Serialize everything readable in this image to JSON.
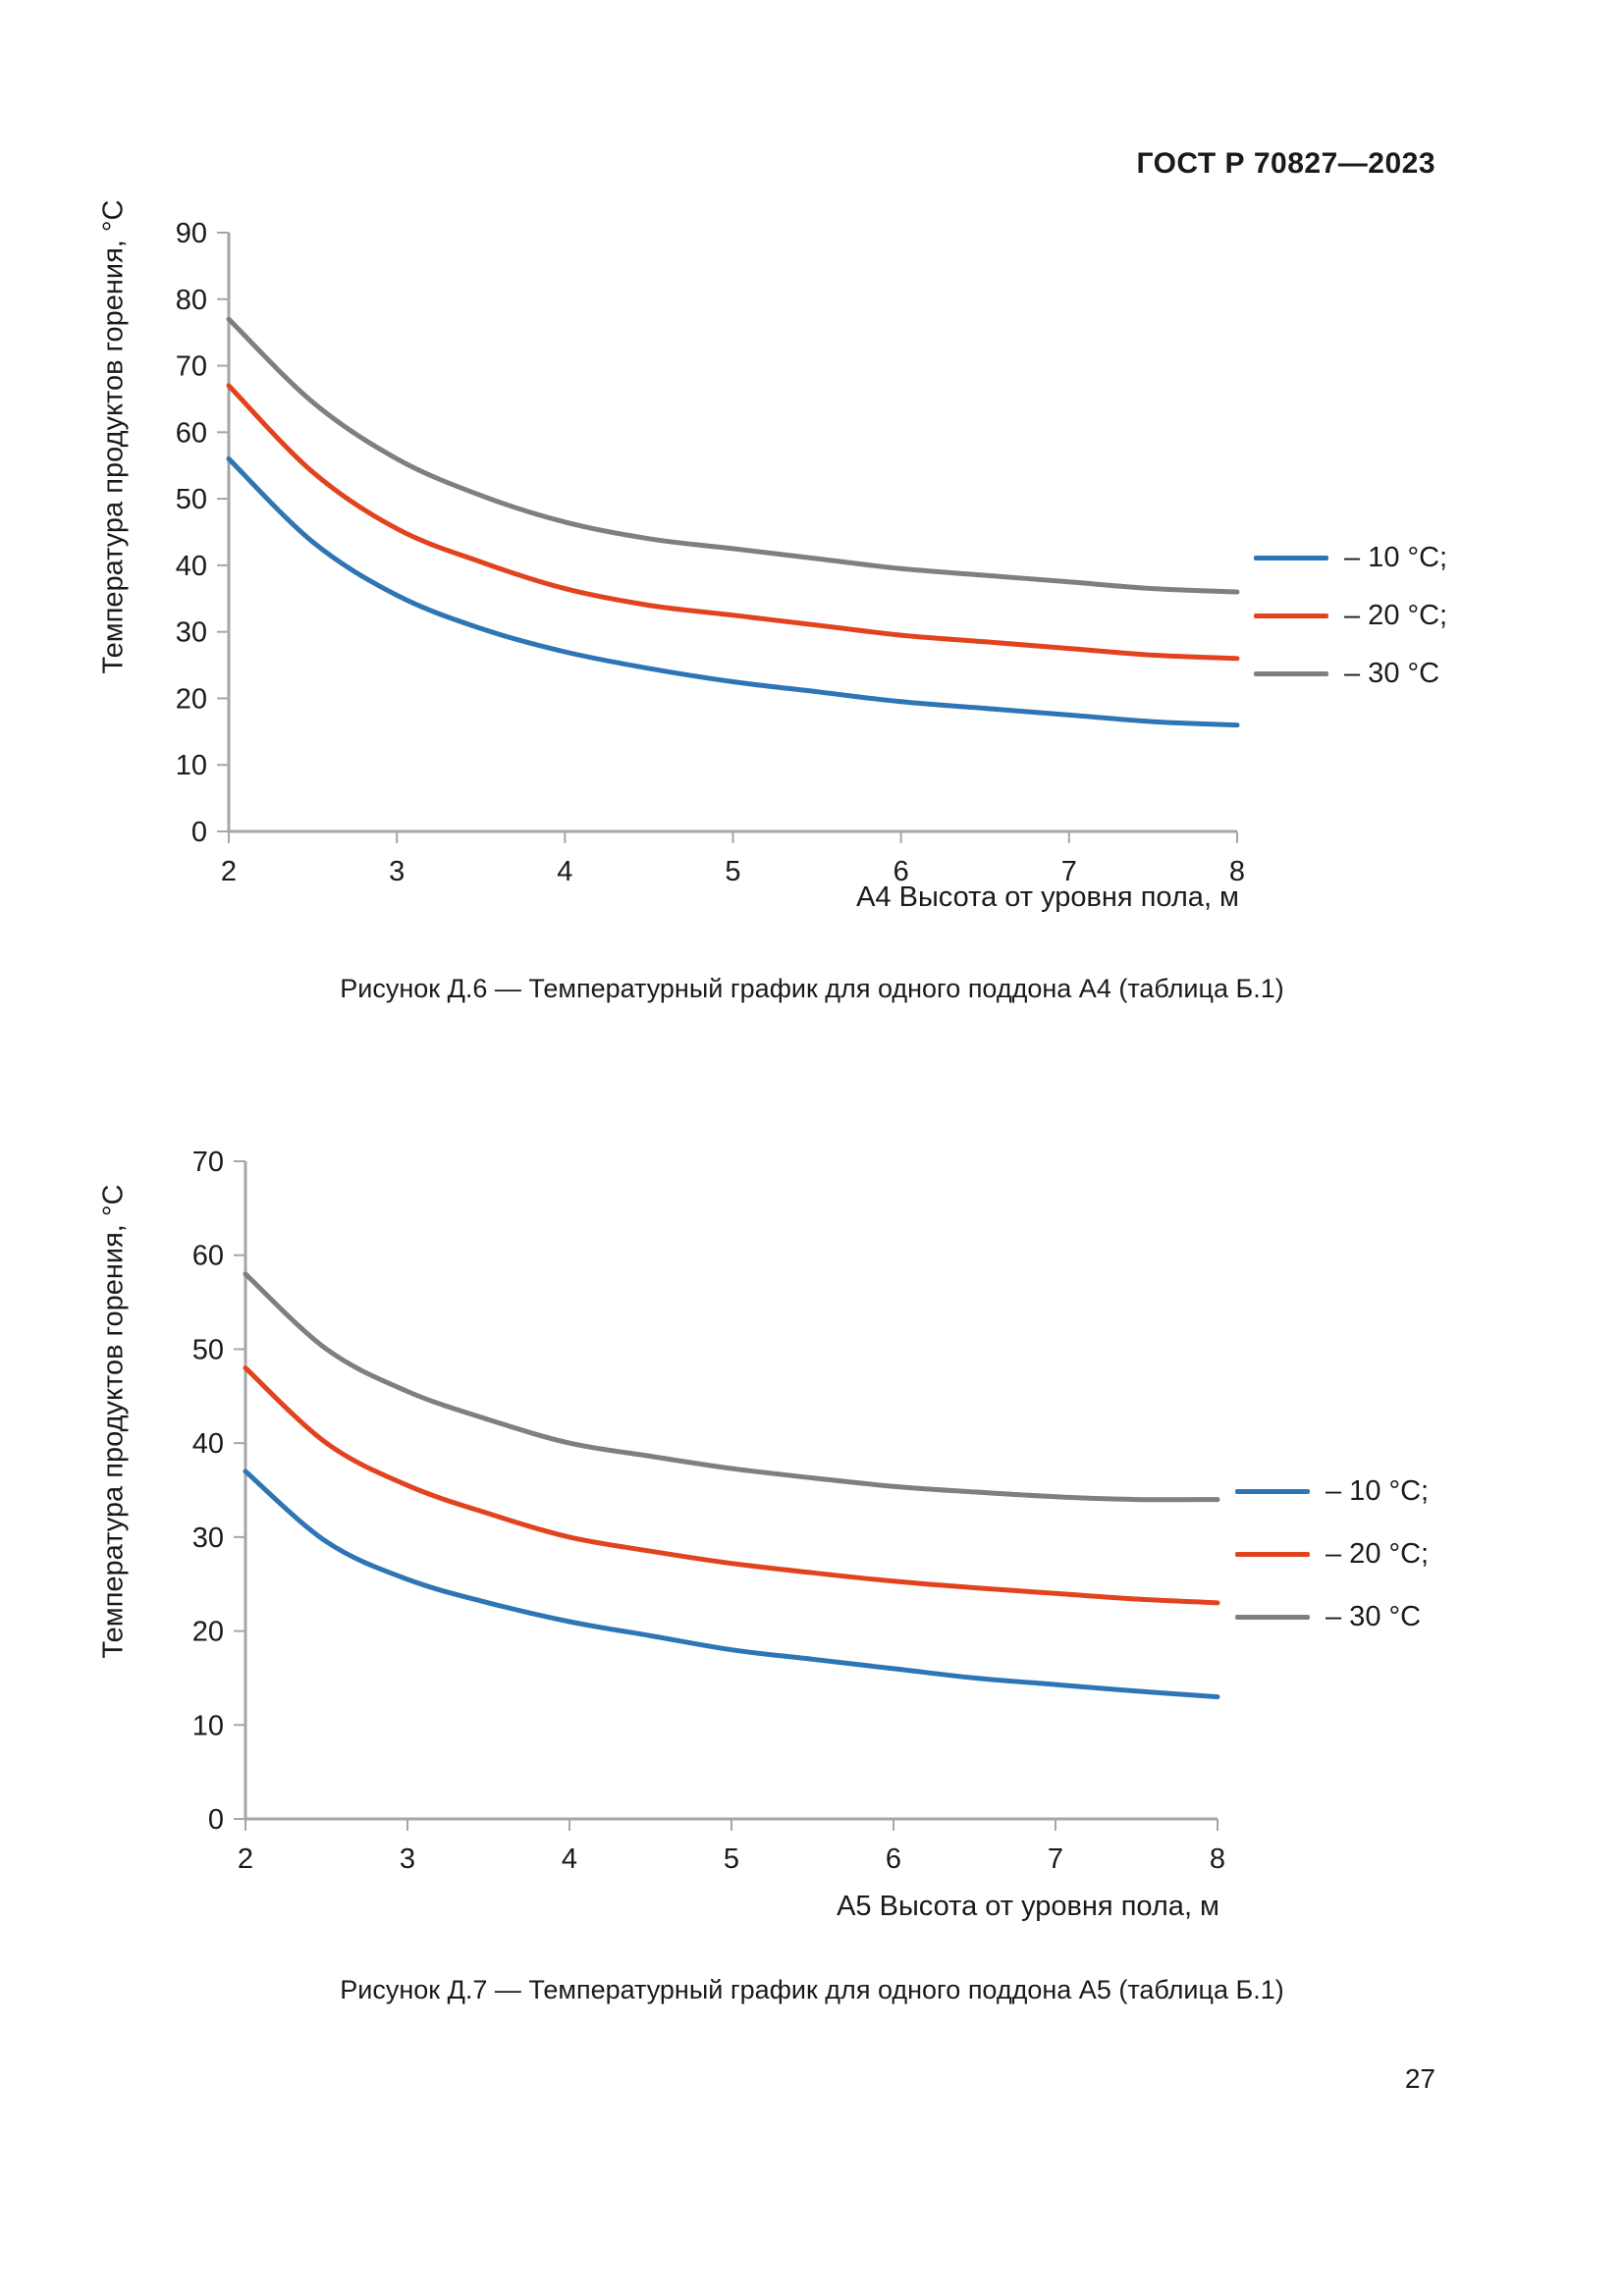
{
  "page": {
    "header": "ГОСТ Р 70827—2023",
    "number": "27"
  },
  "colors": {
    "series_minus10": "#2E75B6",
    "series_minus20": "#E2431E",
    "series_minus30": "#7F7F7F",
    "axis": "#A6A6A6",
    "text": "#1a1a1a"
  },
  "figures": [
    {
      "caption": "Рисунок Д.6 — Температурный график для одного поддона А4 (таблица Б.1)"
    },
    {
      "caption": "Рисунок Д.7 — Температурный график для одного поддона А5 (таблица Б.1)"
    }
  ],
  "chart_data": [
    {
      "type": "line",
      "title": "",
      "xlabel": "А4 Высота от уровня пола, м",
      "ylabel": "Температура продуктов горения, °С",
      "x": [
        2,
        2.5,
        3,
        3.5,
        4,
        4.5,
        5,
        5.5,
        6,
        6.5,
        7,
        7.5,
        8
      ],
      "series": [
        {
          "name": "– 10 °С;",
          "color": "#2E75B6",
          "values": [
            56,
            43.5,
            35.5,
            30.5,
            27,
            24.5,
            22.5,
            21,
            19.5,
            18.5,
            17.5,
            16.5,
            16
          ]
        },
        {
          "name": "– 20 °С;",
          "color": "#E2431E",
          "values": [
            67,
            54,
            45.5,
            40.5,
            36.5,
            34,
            32.5,
            31,
            29.5,
            28.5,
            27.5,
            26.5,
            26
          ]
        },
        {
          "name": "– 30 °С",
          "color": "#7F7F7F",
          "values": [
            77,
            64.5,
            56,
            50.5,
            46.5,
            44,
            42.5,
            41,
            39.5,
            38.5,
            37.5,
            36.5,
            36
          ]
        }
      ],
      "xlim": [
        2,
        8
      ],
      "ylim": [
        0,
        90
      ],
      "xticks": [
        2,
        3,
        4,
        5,
        6,
        7,
        8
      ],
      "yticks": [
        0,
        10,
        20,
        30,
        40,
        50,
        60,
        70,
        80,
        90
      ],
      "grid": false,
      "legend_position": "right"
    },
    {
      "type": "line",
      "title": "",
      "xlabel": "А5 Высота от уровня пола, м",
      "ylabel": "Температура продуктов горения, °С",
      "x": [
        2,
        2.5,
        3,
        3.5,
        4,
        4.5,
        5,
        5.5,
        6,
        6.5,
        7,
        7.5,
        8
      ],
      "series": [
        {
          "name": "– 10 °С;",
          "color": "#2E75B6",
          "values": [
            37,
            29.5,
            25.5,
            23,
            21,
            19.5,
            18,
            17,
            16,
            15,
            14.3,
            13.6,
            13
          ]
        },
        {
          "name": "– 20 °С;",
          "color": "#E2431E",
          "values": [
            48,
            40,
            35.5,
            32.5,
            30,
            28.5,
            27.2,
            26.2,
            25.3,
            24.6,
            24,
            23.4,
            23
          ]
        },
        {
          "name": "– 30 °С",
          "color": "#7F7F7F",
          "values": [
            58,
            50,
            45.5,
            42.5,
            40,
            38.6,
            37.3,
            36.3,
            35.4,
            34.8,
            34.3,
            34,
            34
          ]
        }
      ],
      "xlim": [
        2,
        8
      ],
      "ylim": [
        0,
        70
      ],
      "xticks": [
        2,
        3,
        4,
        5,
        6,
        7,
        8
      ],
      "yticks": [
        0,
        10,
        20,
        30,
        40,
        50,
        60,
        70
      ],
      "grid": false,
      "legend_position": "right"
    }
  ]
}
